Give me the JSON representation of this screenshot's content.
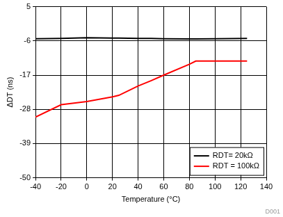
{
  "chart_data": {
    "type": "line",
    "x_label": "Temperature (°C)",
    "y_label": "ΔDT (ns)",
    "x": [
      -40,
      -20,
      0,
      20,
      25,
      40,
      50,
      60,
      80,
      85,
      100,
      125
    ],
    "series": [
      {
        "name": "RDT= 20kΩ",
        "color": "#000000",
        "values": [
          -5.3,
          -5.2,
          -5.0,
          -5.1,
          -5.1,
          -5.2,
          -5.2,
          -5.3,
          -5.4,
          -5.4,
          -5.3,
          -5.2
        ]
      },
      {
        "name": "RDT = 100kΩ",
        "color": "#ff0000",
        "values": [
          -30.5,
          -26.5,
          -25.5,
          -24,
          -23.5,
          -20.5,
          -18.8,
          -17,
          -13.5,
          -12.5,
          -12.5,
          -12.5
        ]
      }
    ],
    "xlim": [
      -40,
      140
    ],
    "xticks": [
      -40,
      -20,
      0,
      20,
      40,
      60,
      80,
      100,
      120,
      140
    ],
    "ylim": [
      -50,
      5
    ],
    "yticks": [
      -50,
      -39,
      -28,
      -17,
      -6,
      5
    ],
    "grid": true,
    "legend": "lower right",
    "annotations": [
      "D001"
    ]
  }
}
